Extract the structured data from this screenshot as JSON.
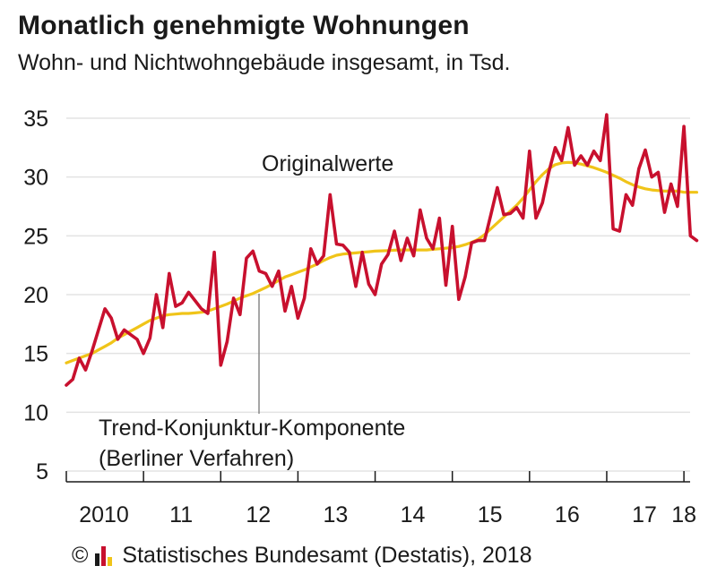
{
  "chart_data": {
    "type": "line",
    "title": "Monatlich genehmigte Wohnungen",
    "subtitle": "Wohn- und Nichtwohngebäude insgesamt, in Tsd.",
    "ylim": [
      5,
      35
    ],
    "yticks": [
      5,
      10,
      15,
      20,
      25,
      30,
      35
    ],
    "xlim": [
      2010,
      2018.08
    ],
    "xticks": [
      {
        "x": 2010,
        "label": "2010"
      },
      {
        "x": 2011,
        "label": "11"
      },
      {
        "x": 2012,
        "label": "12"
      },
      {
        "x": 2013,
        "label": "13"
      },
      {
        "x": 2014,
        "label": "14"
      },
      {
        "x": 2015,
        "label": "15"
      },
      {
        "x": 2016,
        "label": "16"
      },
      {
        "x": 2017,
        "label": "17"
      },
      {
        "x": 2018,
        "label": "18"
      }
    ],
    "grid": true,
    "annotations": [
      {
        "text": "Originalwerte",
        "series": "Originalwerte"
      },
      {
        "text": "Trend-Konjunktur-Komponente",
        "series": "Trend-Konjunktur-Komponente"
      },
      {
        "text": "(Berliner Verfahren)",
        "series": "Trend-Konjunktur-Komponente"
      }
    ],
    "series": [
      {
        "name": "Originalwerte",
        "color": "#c8102e",
        "start": 2010.0,
        "step": 0.08333,
        "values": [
          12.3,
          12.8,
          14.6,
          13.6,
          15.2,
          17.0,
          18.8,
          18.0,
          16.2,
          17.0,
          16.6,
          16.2,
          15.0,
          16.3,
          20.0,
          17.2,
          21.8,
          19.0,
          19.3,
          20.2,
          19.5,
          18.8,
          18.4,
          23.6,
          14.0,
          16.0,
          19.7,
          18.3,
          23.1,
          23.7,
          22.0,
          21.8,
          20.7,
          22.0,
          18.6,
          20.7,
          18.0,
          19.7,
          23.9,
          22.6,
          23.3,
          28.5,
          24.3,
          24.2,
          23.6,
          20.7,
          23.6,
          20.9,
          20.0,
          22.6,
          23.4,
          25.4,
          22.9,
          24.8,
          23.3,
          27.2,
          24.8,
          23.9,
          26.5,
          20.8,
          25.8,
          19.6,
          21.5,
          24.4,
          24.6,
          24.6,
          26.8,
          29.1,
          26.8,
          26.9,
          27.4,
          26.5,
          32.2,
          26.5,
          27.8,
          30.4,
          32.5,
          31.4,
          34.2,
          31.0,
          31.8,
          31.0,
          32.2,
          31.4,
          35.3,
          25.6,
          25.4,
          28.5,
          27.6,
          30.7,
          32.3,
          30.0,
          30.4,
          27.0,
          29.4,
          27.5,
          34.3,
          25.0,
          24.6
        ]
      },
      {
        "name": "Trend-Konjunktur-Komponente",
        "color": "#f0c419",
        "start": 2010.0,
        "step": 0.08333,
        "values": [
          14.2,
          14.4,
          14.6,
          14.8,
          15.0,
          15.3,
          15.6,
          15.9,
          16.3,
          16.6,
          16.9,
          17.2,
          17.5,
          17.8,
          18.0,
          18.2,
          18.3,
          18.35,
          18.4,
          18.4,
          18.45,
          18.5,
          18.6,
          18.8,
          19.0,
          19.2,
          19.45,
          19.7,
          19.9,
          20.1,
          20.35,
          20.6,
          20.9,
          21.2,
          21.5,
          21.7,
          21.9,
          22.1,
          22.35,
          22.6,
          22.9,
          23.15,
          23.35,
          23.45,
          23.5,
          23.55,
          23.6,
          23.65,
          23.7,
          23.72,
          23.75,
          23.78,
          23.8,
          23.8,
          23.8,
          23.8,
          23.8,
          23.85,
          23.9,
          23.95,
          24.0,
          24.1,
          24.25,
          24.45,
          24.7,
          25.1,
          25.6,
          26.1,
          26.6,
          27.1,
          27.6,
          28.2,
          28.9,
          29.6,
          30.2,
          30.7,
          31.05,
          31.2,
          31.25,
          31.2,
          31.1,
          30.95,
          30.8,
          30.6,
          30.4,
          30.15,
          29.9,
          29.6,
          29.35,
          29.15,
          29.0,
          28.9,
          28.85,
          28.8,
          28.8,
          28.8,
          28.7,
          28.7,
          28.7
        ]
      }
    ]
  },
  "footer": {
    "copyright_symbol": "©",
    "logo_colors": [
      "#1a1a1a",
      "#c8102e",
      "#f0c419"
    ],
    "text": "Statistisches Bundesamt (Destatis), 2018"
  }
}
